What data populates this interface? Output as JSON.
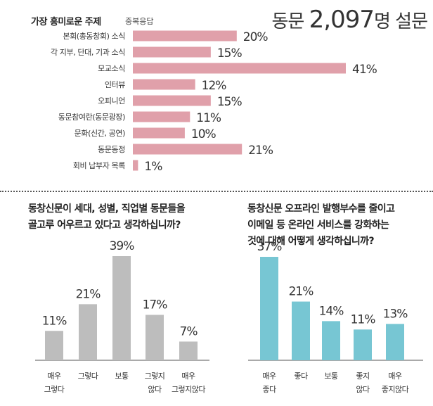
{
  "header": {
    "title": "가장 흥미로운 주제",
    "note": "중복응답",
    "survey_prefix": "동문 ",
    "survey_number": "2,097",
    "survey_suffix": "명 설문"
  },
  "chart_data": [
    {
      "type": "bar",
      "orientation": "horizontal",
      "title": "가장 흥미로운 주제",
      "categories": [
        "본회(총동창회) 소식",
        "각 지부, 단대, 기과 소식",
        "모교소식",
        "인터뷰",
        "오피니언",
        "동문참여란(동문광장)",
        "문화(신간, 공연)",
        "동문동정",
        "회비 납부자 목록"
      ],
      "values": [
        20,
        15,
        41,
        12,
        15,
        11,
        10,
        21,
        1
      ],
      "value_labels": [
        "20%",
        "15%",
        "41%",
        "12%",
        "15%",
        "11%",
        "10%",
        "21%",
        "1%"
      ],
      "unit": "%",
      "color": "#e0a0aa",
      "grid": false
    },
    {
      "type": "bar",
      "title_lines": [
        "동창신문이 세대, 성별, 직업별 동문들을",
        "골고루 어우르고 있다고 생각하십니까?"
      ],
      "categories": [
        [
          "매우",
          "그렇다"
        ],
        [
          "그렇다"
        ],
        [
          "보통"
        ],
        [
          "그렇지",
          "않다"
        ],
        [
          "매우",
          "그렇지않다"
        ]
      ],
      "values": [
        11,
        21,
        39,
        17,
        7
      ],
      "value_labels": [
        "11%",
        "21%",
        "39%",
        "17%",
        "7%"
      ],
      "unit": "%",
      "color": "#bdbdbd",
      "grid": false
    },
    {
      "type": "bar",
      "title_lines": [
        "동창신문 오프라인 발행부수를 줄이고",
        "이메일 등 온라인 서비스를 강화하는",
        "것에 대해 어떻게 생각하십니까?"
      ],
      "categories": [
        [
          "매우",
          "좋다"
        ],
        [
          "좋다"
        ],
        [
          "보통"
        ],
        [
          "좋지",
          "않다"
        ],
        [
          "매우",
          "좋지않다"
        ]
      ],
      "values": [
        37,
        21,
        14,
        11,
        13
      ],
      "value_labels": [
        "37%",
        "21%",
        "14%",
        "11%",
        "13%"
      ],
      "unit": "%",
      "color": "#77c6d3",
      "grid": false
    }
  ]
}
